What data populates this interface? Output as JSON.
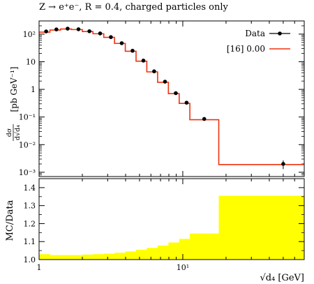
{
  "chart_data": [
    {
      "type": "line",
      "title": "Z → e⁺e⁻, R = 0.4, charged particles only",
      "xlabel": "√d₄ [GeV]",
      "ylabel_num": "dσ",
      "ylabel_den": "d√d₄",
      "ylabel_unit": "[pb GeV⁻¹]",
      "xscale": "log",
      "yscale": "log",
      "xlim": [
        1,
        70
      ],
      "ylim": [
        0.0007,
        300
      ],
      "y_ticks": [
        {
          "value": 0.001,
          "label": "10⁻³"
        },
        {
          "value": 0.01,
          "label": "10⁻²"
        },
        {
          "value": 0.1,
          "label": "10⁻¹"
        },
        {
          "value": 1,
          "label": "1"
        },
        {
          "value": 10,
          "label": "10"
        },
        {
          "value": 100,
          "label": "10²"
        }
      ],
      "legend_position": "top-right",
      "series": [
        {
          "name": "Data",
          "style": "points",
          "color": "#000000",
          "points": [
            {
              "x": 1.12,
              "y": 125,
              "err": 3
            },
            {
              "x": 1.32,
              "y": 148,
              "err": 3
            },
            {
              "x": 1.58,
              "y": 158,
              "err": 3
            },
            {
              "x": 1.88,
              "y": 150,
              "err": 3
            },
            {
              "x": 2.24,
              "y": 127,
              "err": 3
            },
            {
              "x": 2.66,
              "y": 106,
              "err": 3
            },
            {
              "x": 3.16,
              "y": 78,
              "err": 2
            },
            {
              "x": 3.76,
              "y": 47,
              "err": 1.5
            },
            {
              "x": 4.47,
              "y": 25,
              "err": 1
            },
            {
              "x": 5.32,
              "y": 11,
              "err": 0.5
            },
            {
              "x": 6.32,
              "y": 4.5,
              "err": 0.2
            },
            {
              "x": 7.52,
              "y": 1.9,
              "err": 0.1
            },
            {
              "x": 8.94,
              "y": 0.73,
              "err": 0.04
            },
            {
              "x": 10.63,
              "y": 0.33,
              "err": 0.02
            },
            {
              "x": 14.1,
              "y": 0.085,
              "err": 0.006
            },
            {
              "x": 50,
              "y": 0.002,
              "err": 0.0007
            }
          ]
        },
        {
          "name": "[16] 0.00",
          "style": "step",
          "color": "#ee3311",
          "bins": [
            {
              "lo": 1.0,
              "hi": 1.19,
              "y": 118
            },
            {
              "lo": 1.19,
              "hi": 1.41,
              "y": 140
            },
            {
              "lo": 1.41,
              "hi": 1.68,
              "y": 153
            },
            {
              "lo": 1.68,
              "hi": 2.0,
              "y": 146
            },
            {
              "lo": 2.0,
              "hi": 2.37,
              "y": 124
            },
            {
              "lo": 2.37,
              "hi": 2.82,
              "y": 103
            },
            {
              "lo": 2.82,
              "hi": 3.35,
              "y": 76
            },
            {
              "lo": 3.35,
              "hi": 3.98,
              "y": 46
            },
            {
              "lo": 3.98,
              "hi": 4.73,
              "y": 24
            },
            {
              "lo": 4.73,
              "hi": 5.62,
              "y": 10.5
            },
            {
              "lo": 5.62,
              "hi": 6.68,
              "y": 4.3
            },
            {
              "lo": 6.68,
              "hi": 7.94,
              "y": 1.8
            },
            {
              "lo": 7.94,
              "hi": 9.44,
              "y": 0.7
            },
            {
              "lo": 9.44,
              "hi": 11.2,
              "y": 0.31
            },
            {
              "lo": 11.2,
              "hi": 17.8,
              "y": 0.08
            },
            {
              "lo": 17.8,
              "hi": 70,
              "y": 0.0019
            }
          ]
        }
      ]
    },
    {
      "type": "area",
      "ylabel": "MC/Data",
      "xscale": "log",
      "xlim": [
        1,
        70
      ],
      "ylim": [
        1.0,
        1.45
      ],
      "y_ticks": [
        {
          "value": 1.0,
          "label": "1.0"
        },
        {
          "value": 1.1,
          "label": "1.1"
        },
        {
          "value": 1.2,
          "label": "1.2"
        },
        {
          "value": 1.3,
          "label": "1.3"
        },
        {
          "value": 1.4,
          "label": "1.4"
        }
      ],
      "x_ticks": [
        {
          "value": 1,
          "label": "1"
        },
        {
          "value": 10,
          "label": "10¹"
        }
      ],
      "band_color": "#ffff00",
      "band": [
        {
          "lo": 1.0,
          "hi": 1.19,
          "upper": 1.03
        },
        {
          "lo": 1.19,
          "hi": 1.41,
          "upper": 1.025
        },
        {
          "lo": 1.41,
          "hi": 1.68,
          "upper": 1.025
        },
        {
          "lo": 1.68,
          "hi": 2.0,
          "upper": 1.025
        },
        {
          "lo": 2.0,
          "hi": 2.37,
          "upper": 1.028
        },
        {
          "lo": 2.37,
          "hi": 2.82,
          "upper": 1.03
        },
        {
          "lo": 2.82,
          "hi": 3.35,
          "upper": 1.033
        },
        {
          "lo": 3.35,
          "hi": 3.98,
          "upper": 1.038
        },
        {
          "lo": 3.98,
          "hi": 4.73,
          "upper": 1.045
        },
        {
          "lo": 4.73,
          "hi": 5.62,
          "upper": 1.055
        },
        {
          "lo": 5.62,
          "hi": 6.68,
          "upper": 1.065
        },
        {
          "lo": 6.68,
          "hi": 7.94,
          "upper": 1.078
        },
        {
          "lo": 7.94,
          "hi": 9.44,
          "upper": 1.095
        },
        {
          "lo": 9.44,
          "hi": 11.2,
          "upper": 1.115
        },
        {
          "lo": 11.2,
          "hi": 17.8,
          "upper": 1.145
        },
        {
          "lo": 17.8,
          "hi": 70,
          "upper": 1.355
        }
      ]
    }
  ]
}
